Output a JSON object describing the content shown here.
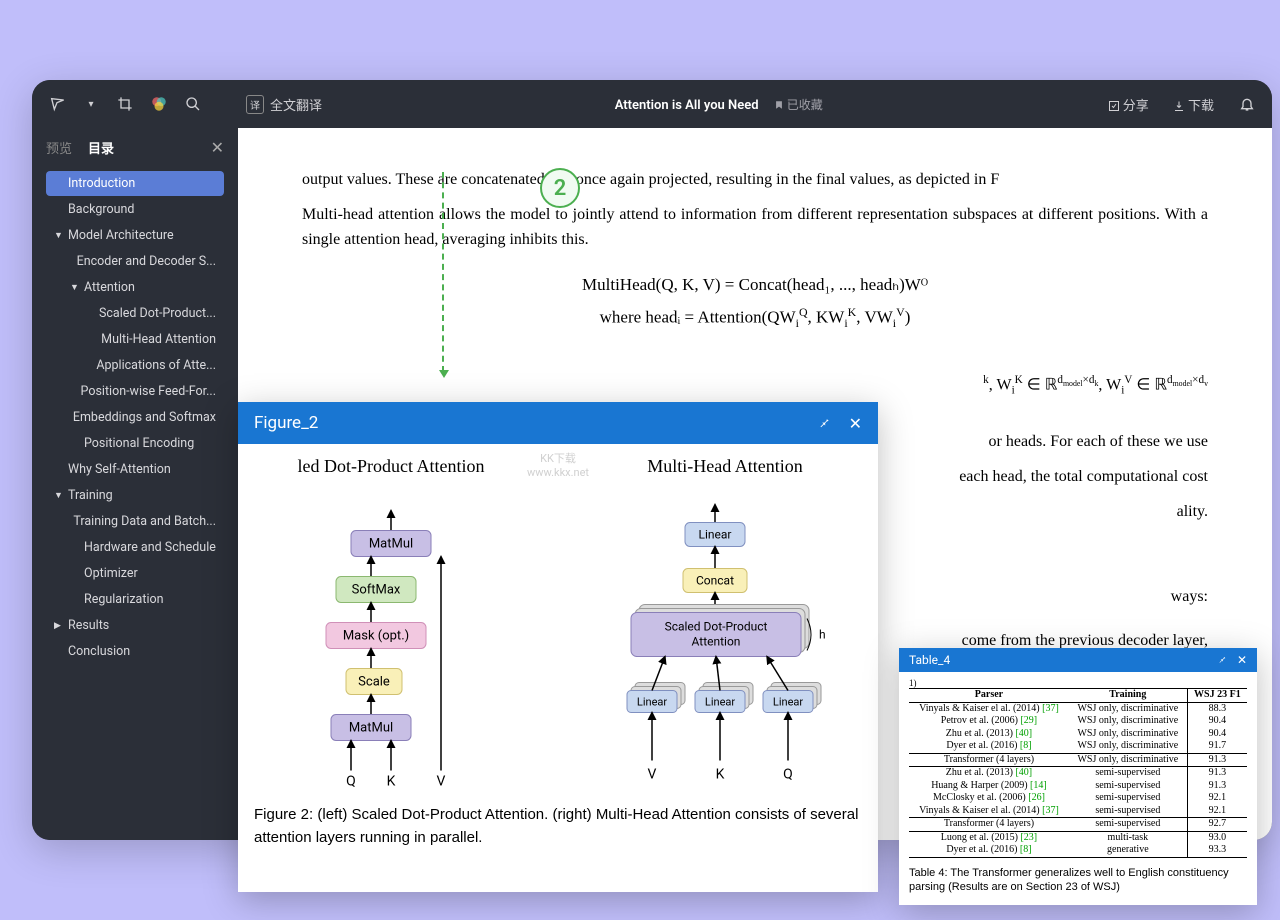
{
  "colors": {
    "page_bg": "#c0befa",
    "app_bg": "#2b2f38",
    "accent_blue": "#1976d2",
    "toc_active": "#5b7dd6",
    "marker_green": "#4caf50",
    "box_purple": "#c8bfe5",
    "box_yellow": "#f9f0b8",
    "box_green": "#d0e8c0",
    "box_pink": "#f2c8e0",
    "box_blue": "#c8d8f0",
    "box_border": "#8a7fb8",
    "ref_green": "#00a000"
  },
  "toolbar": {
    "translate_label": "全文翻译",
    "title": "Attention is All you Need",
    "bookmark_label": "已收藏",
    "share_label": "分享",
    "download_label": "下载"
  },
  "sidebar": {
    "tab_preview": "预览",
    "tab_toc": "目录",
    "items": [
      {
        "label": "Introduction",
        "level": 0,
        "active": true
      },
      {
        "label": "Background",
        "level": 0
      },
      {
        "label": "Model Architecture",
        "level": 0,
        "expanded": true
      },
      {
        "label": "Encoder and Decoder S...",
        "level": 1
      },
      {
        "label": "Attention",
        "level": 1,
        "expanded": true
      },
      {
        "label": "Scaled Dot-Product...",
        "level": 2
      },
      {
        "label": "Multi-Head Attention",
        "level": 2
      },
      {
        "label": "Applications of Atte...",
        "level": 2
      },
      {
        "label": "Position-wise Feed-For...",
        "level": 1
      },
      {
        "label": "Embeddings and Softmax",
        "level": 1
      },
      {
        "label": "Positional Encoding",
        "level": 1
      },
      {
        "label": "Why Self-Attention",
        "level": 0
      },
      {
        "label": "Training",
        "level": 0,
        "expanded": true
      },
      {
        "label": "Training Data and Batch...",
        "level": 1
      },
      {
        "label": "Hardware and Schedule",
        "level": 1
      },
      {
        "label": "Optimizer",
        "level": 1
      },
      {
        "label": "Regularization",
        "level": 1
      },
      {
        "label": "Results",
        "level": 0,
        "collapsed": true
      },
      {
        "label": "Conclusion",
        "level": 0
      }
    ]
  },
  "content": {
    "p1": "output values. These are concatenated and once again projected, resulting in the final values, as depicted in F",
    "p2": "Multi-head attention allows the model to jointly attend to information from different representation subspaces at different positions. With a single attention head, averaging inhibits this.",
    "formula1": "MultiHead(Q, K, V) = Concat(head₁, ..., headₕ)Wᴼ",
    "formula2_pre": "where headᵢ = Attention(QW",
    "p3_tail": " or heads.  For each of these we use",
    "p4_tail": "each head, the total computational cost",
    "p5_tail": "ality.",
    "p6_tail": "ways:",
    "p7_tail": "come from the previous decoder layer,",
    "circle_num": "2",
    "watermark_line1": "KK下载",
    "watermark_line2": "www.kkx.net"
  },
  "figure_window": {
    "title": "Figure_2",
    "left_title": "led Dot-Product Attention",
    "right_title": "Multi-Head Attention",
    "left_boxes": {
      "matmul": "MatMul",
      "softmax": "SoftMax",
      "mask": "Mask (opt.)",
      "scale": "Scale"
    },
    "right_boxes": {
      "linear": "Linear",
      "concat": "Concat",
      "sda": "Scaled Dot-Product\nAttention"
    },
    "inputs_left": [
      "Q",
      "K",
      "V"
    ],
    "inputs_right": [
      "V",
      "K",
      "Q"
    ],
    "h_label": "h",
    "caption": "Figure 2: (left) Scaled Dot-Product Attention. (right) Multi-Head Attention consists of several attention layers running in parallel."
  },
  "table_window": {
    "title": "Table_4",
    "columns": [
      "Parser",
      "Training",
      "WSJ 23 F1"
    ],
    "rows": [
      {
        "parser": "Vinyals & Kaiser el al. (2014)",
        "ref": "[37]",
        "training": "WSJ only, discriminative",
        "f1": "88.3"
      },
      {
        "parser": "Petrov et al. (2006)",
        "ref": "[29]",
        "training": "WSJ only, discriminative",
        "f1": "90.4"
      },
      {
        "parser": "Zhu et al. (2013)",
        "ref": "[40]",
        "training": "WSJ only, discriminative",
        "f1": "90.4"
      },
      {
        "parser": "Dyer et al. (2016)",
        "ref": "[8]",
        "training": "WSJ only, discriminative",
        "f1": "91.7",
        "sep_after": true
      },
      {
        "parser": "Transformer (4 layers)",
        "ref": "",
        "training": "WSJ only, discriminative",
        "f1": "91.3",
        "sep_after": true
      },
      {
        "parser": "Zhu et al. (2013)",
        "ref": "[40]",
        "training": "semi-supervised",
        "f1": "91.3"
      },
      {
        "parser": "Huang & Harper (2009)",
        "ref": "[14]",
        "training": "semi-supervised",
        "f1": "91.3"
      },
      {
        "parser": "McClosky et al. (2006)",
        "ref": "[26]",
        "training": "semi-supervised",
        "f1": "92.1"
      },
      {
        "parser": "Vinyals & Kaiser el al. (2014)",
        "ref": "[37]",
        "training": "semi-supervised",
        "f1": "92.1",
        "sep_after": true
      },
      {
        "parser": "Transformer (4 layers)",
        "ref": "",
        "training": "semi-supervised",
        "f1": "92.7",
        "sep_after": true
      },
      {
        "parser": "Luong et al. (2015)",
        "ref": "[23]",
        "training": "multi-task",
        "f1": "93.0"
      },
      {
        "parser": "Dyer et al. (2016)",
        "ref": "[8]",
        "training": "generative",
        "f1": "93.3",
        "last": true
      }
    ],
    "caption": "Table 4: The Transformer generalizes well to English constituency parsing (Results are on Section 23 of WSJ)"
  }
}
